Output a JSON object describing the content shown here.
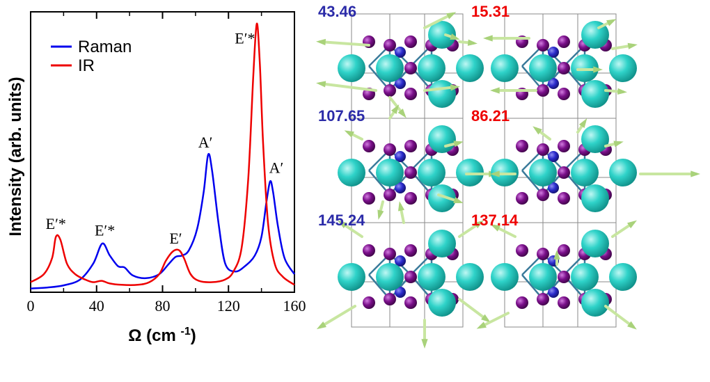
{
  "chart_data": {
    "type": "line",
    "xlabel": "Ω (cm⁻¹)",
    "ylabel": "Intensity (arb. units)",
    "xlim": [
      0,
      160
    ],
    "ylim": [
      0,
      1.0
    ],
    "x_ticks": [
      "0",
      "40",
      "80",
      "120",
      "160"
    ],
    "y_ticks_shown": false,
    "legend": {
      "placement": "top-left",
      "entries": [
        "Raman",
        "IR"
      ]
    },
    "series": [
      {
        "name": "Raman",
        "color": "#0000ee",
        "points": [
          [
            0,
            0.006
          ],
          [
            10,
            0.01
          ],
          [
            20,
            0.018
          ],
          [
            30,
            0.04
          ],
          [
            38,
            0.1
          ],
          [
            43.46,
            0.175
          ],
          [
            48,
            0.13
          ],
          [
            53,
            0.09
          ],
          [
            57,
            0.085
          ],
          [
            62,
            0.055
          ],
          [
            70,
            0.045
          ],
          [
            78,
            0.06
          ],
          [
            84,
            0.1
          ],
          [
            88,
            0.125
          ],
          [
            92,
            0.13
          ],
          [
            96,
            0.15
          ],
          [
            101,
            0.23
          ],
          [
            105,
            0.37
          ],
          [
            107.65,
            0.508
          ],
          [
            110,
            0.45
          ],
          [
            114,
            0.25
          ],
          [
            118,
            0.1
          ],
          [
            124,
            0.07
          ],
          [
            130,
            0.09
          ],
          [
            136,
            0.13
          ],
          [
            140,
            0.2
          ],
          [
            143,
            0.33
          ],
          [
            145.24,
            0.408
          ],
          [
            147,
            0.37
          ],
          [
            150,
            0.24
          ],
          [
            154,
            0.12
          ],
          [
            160,
            0.06
          ]
        ]
      },
      {
        "name": "IR",
        "color": "#ee0000",
        "points": [
          [
            0,
            0.03
          ],
          [
            8,
            0.06
          ],
          [
            13,
            0.12
          ],
          [
            15.31,
            0.2
          ],
          [
            18,
            0.19
          ],
          [
            22,
            0.1
          ],
          [
            27,
            0.06
          ],
          [
            33,
            0.04
          ],
          [
            38,
            0.03
          ],
          [
            43,
            0.035
          ],
          [
            48,
            0.025
          ],
          [
            55,
            0.02
          ],
          [
            65,
            0.02
          ],
          [
            72,
            0.03
          ],
          [
            78,
            0.06
          ],
          [
            82,
            0.11
          ],
          [
            86.21,
            0.145
          ],
          [
            90,
            0.15
          ],
          [
            93,
            0.12
          ],
          [
            97,
            0.06
          ],
          [
            102,
            0.035
          ],
          [
            110,
            0.03
          ],
          [
            118,
            0.04
          ],
          [
            123,
            0.07
          ],
          [
            128,
            0.16
          ],
          [
            132,
            0.42
          ],
          [
            135,
            0.8
          ],
          [
            137.14,
            1.0
          ],
          [
            139,
            0.85
          ],
          [
            141,
            0.55
          ],
          [
            144,
            0.25
          ],
          [
            148,
            0.1
          ],
          [
            153,
            0.05
          ],
          [
            160,
            0.02
          ]
        ]
      }
    ],
    "annotations": [
      {
        "text": "E′*",
        "x": 15.31,
        "y": 0.23
      },
      {
        "text": "E′*",
        "x": 45,
        "y": 0.205
      },
      {
        "text": "E′",
        "x": 88,
        "y": 0.175
      },
      {
        "text": "A′",
        "x": 106,
        "y": 0.535
      },
      {
        "text": "E′*",
        "x": 130,
        "y": 0.925
      },
      {
        "text": "A′",
        "x": 149,
        "y": 0.44
      }
    ]
  },
  "modes": [
    {
      "label": "43.46",
      "color": "#2b2ba8"
    },
    {
      "label": "15.31",
      "color": "#ee0000"
    },
    {
      "label": "107.65",
      "color": "#2b2ba8"
    },
    {
      "label": "86.21",
      "color": "#ee0000"
    },
    {
      "label": "145.24",
      "color": "#2b2ba8"
    },
    {
      "label": "137.14",
      "color": "#ee0000"
    }
  ],
  "colors": {
    "atom_cyan": "#1fc9c0",
    "atom_purple": "#7a0f8a",
    "atom_blue": "#2b2bcc",
    "arrow": "#c8e6a0",
    "cell_line": "#8a8a8a"
  }
}
